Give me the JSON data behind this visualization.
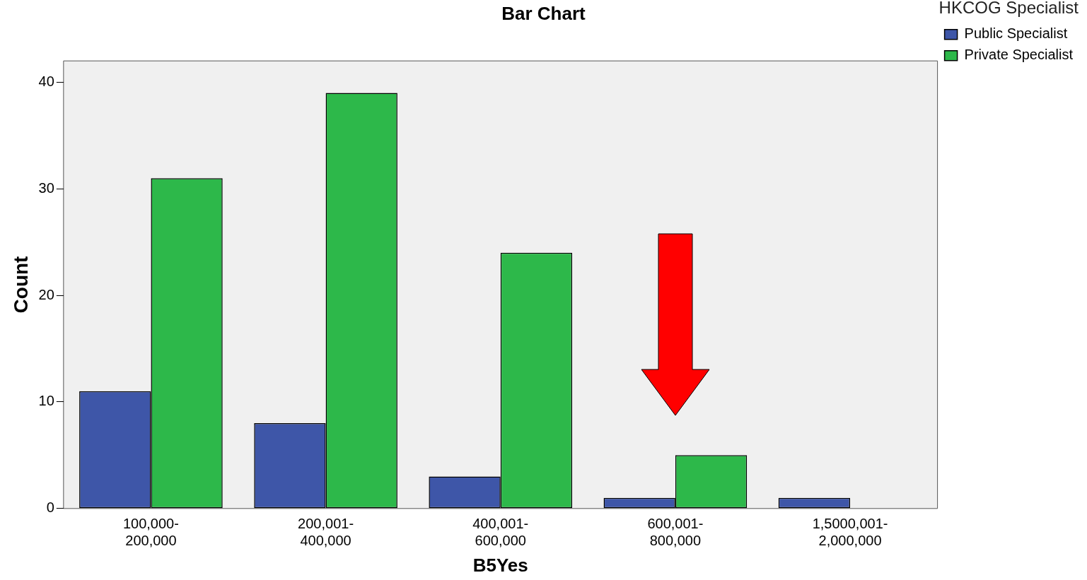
{
  "chart_data": {
    "type": "bar",
    "title": "Bar Chart",
    "xlabel": "B5Yes",
    "ylabel": "Count",
    "legend_title": "HKCOG Specialist",
    "categories": [
      "100,000-\n200,000",
      "200,001-\n400,000",
      "400,001-\n600,000",
      "600,001-\n800,000",
      "1,5000,001-\n2,000,000"
    ],
    "series": [
      {
        "name": "Public Specialist",
        "color": "#3e56a8",
        "values": [
          11,
          8,
          3,
          1,
          1
        ]
      },
      {
        "name": "Private Specialist",
        "color": "#2db84a",
        "values": [
          31,
          39,
          24,
          5,
          0
        ]
      }
    ],
    "ylim": [
      0,
      42
    ],
    "yticks": [
      0,
      10,
      20,
      30,
      40
    ],
    "grid": false,
    "legend": "top right"
  }
}
